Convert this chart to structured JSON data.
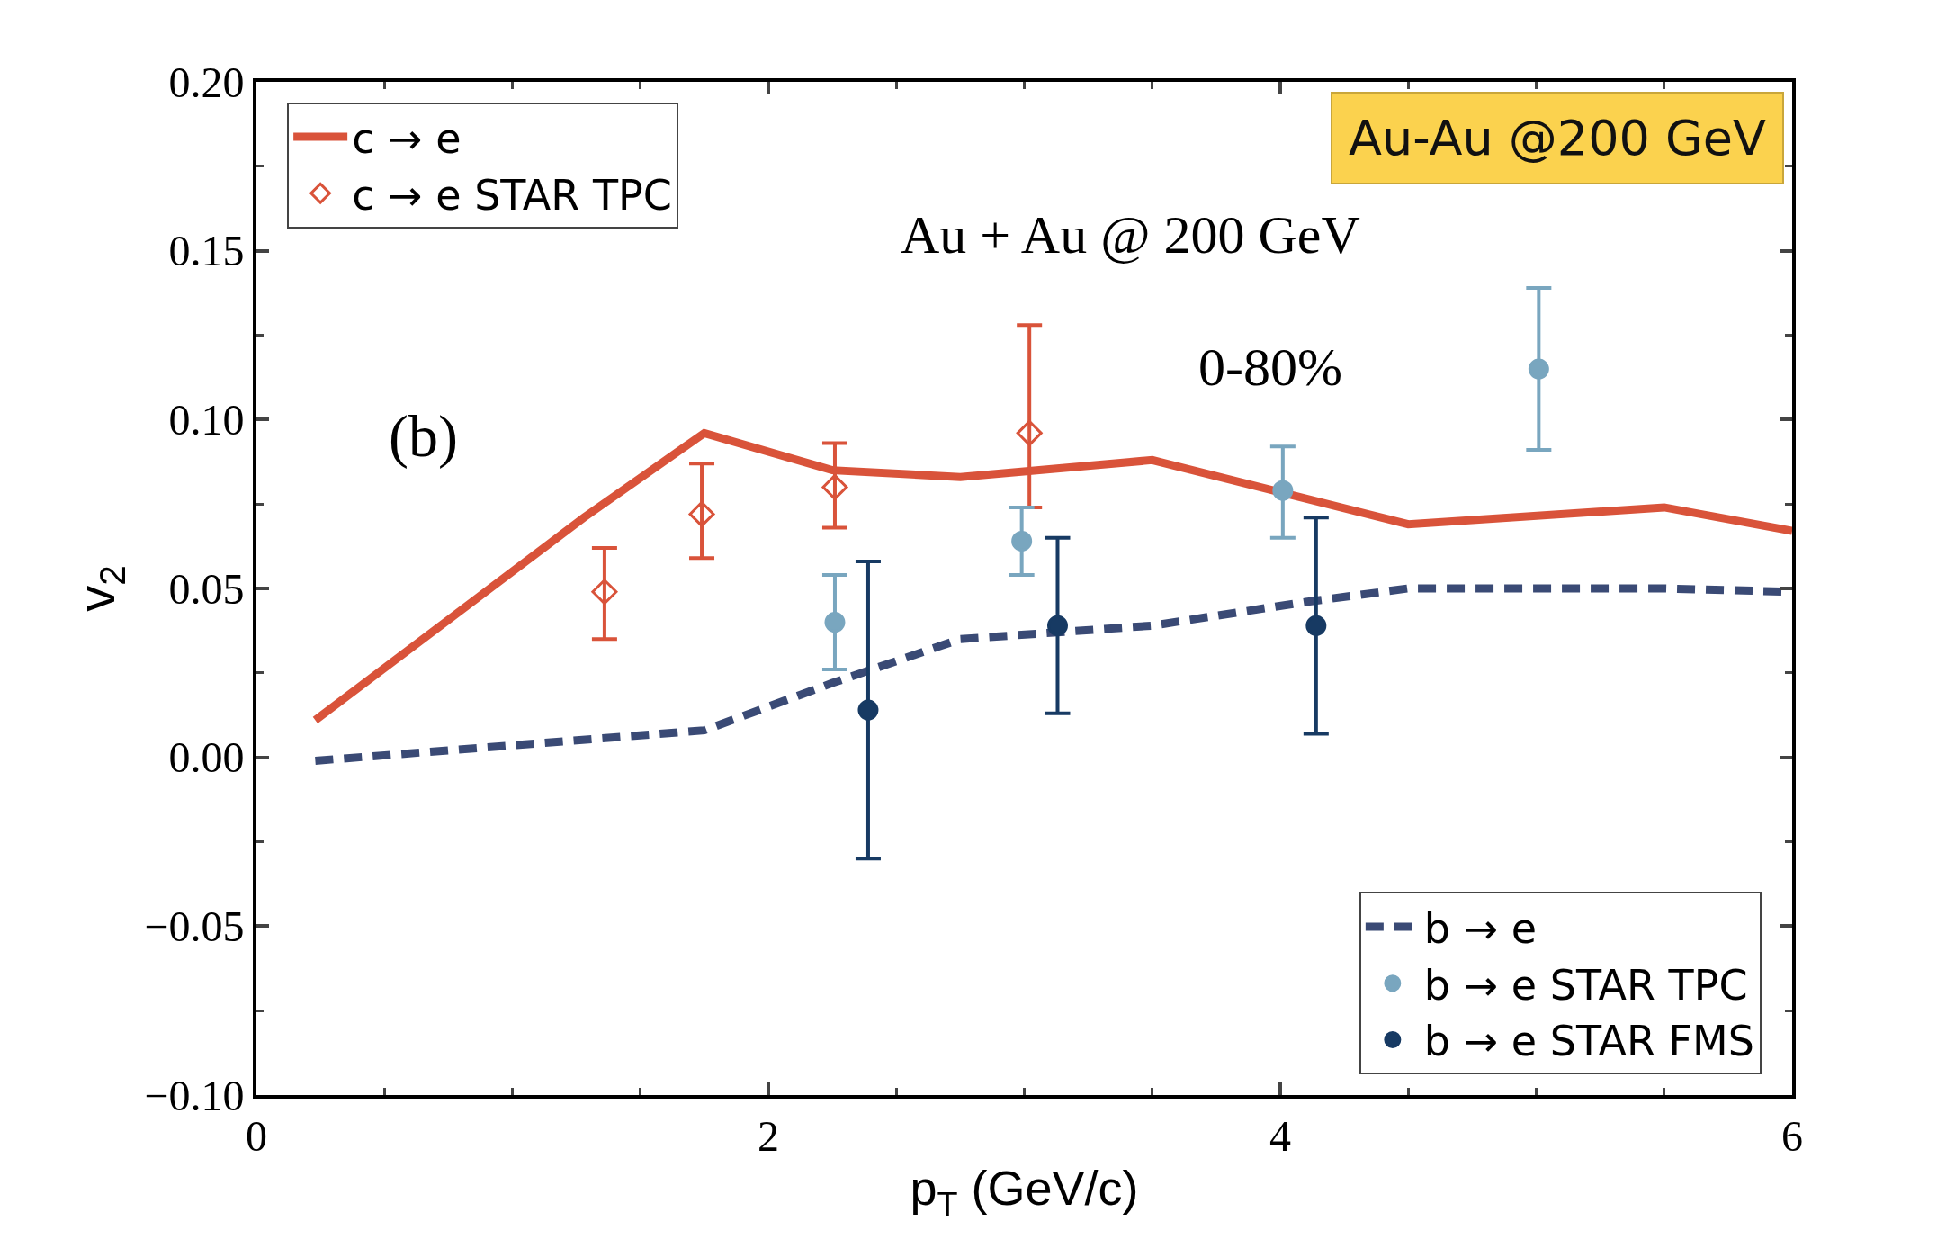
{
  "chart_data": {
    "type": "line",
    "xlabel": "p$_{T}$ (GeV/c)",
    "ylabel": "v$_{2}$",
    "xlim": [
      0,
      6
    ],
    "xticks": [
      0,
      2,
      4,
      6
    ],
    "ylim": [
      -0.1,
      0.2
    ],
    "yticks": [
      {
        "value": -0.1,
        "label": "−0.10"
      },
      {
        "value": -0.05,
        "label": "−0.05"
      },
      {
        "value": 0,
        "label": "0.00"
      },
      {
        "value": 0.05,
        "label": "0.05"
      },
      {
        "value": 0.1,
        "label": "0.10"
      },
      {
        "value": 0.15,
        "label": "0.15"
      },
      {
        "value": 0.2,
        "label": "0.20"
      }
    ],
    "legend": [
      "top left",
      "bottom right"
    ],
    "series": [
      {
        "name": "c → e",
        "color": "#d9533a",
        "line_style": "solid",
        "marker": "none",
        "x": [
          0.23,
          1.28,
          1.75,
          2.25,
          2.75,
          3.5,
          4.5,
          5.5,
          6.0
        ],
        "values": [
          0.011,
          0.071,
          0.096,
          0.085,
          0.083,
          0.088,
          0.069,
          0.074,
          0.067
        ]
      },
      {
        "name": "c → e STAR TPC",
        "type": "scatter",
        "color": "#d9533a",
        "marker": "diamond-open",
        "x": [
          1.36,
          1.74,
          2.26,
          3.02
        ],
        "values": [
          0.049,
          0.072,
          0.08,
          0.096
        ],
        "errors": [
          [
            0.035,
            0.062
          ],
          [
            0.059,
            0.087
          ],
          [
            0.068,
            0.093
          ],
          [
            0.074,
            0.128
          ]
        ]
      },
      {
        "name": "b → e",
        "color": "#3a4a75",
        "line_style": "dashed",
        "marker": "none",
        "x": [
          0.23,
          1.75,
          2.25,
          2.75,
          3.5,
          4.1,
          4.5,
          5.5,
          6.0
        ],
        "values": [
          -0.001,
          0.008,
          0.022,
          0.035,
          0.039,
          0.046,
          0.05,
          0.05,
          0.049
        ]
      },
      {
        "name": "b → e STAR TPC",
        "type": "scatter",
        "color": "#79a6bf",
        "marker": "circle",
        "x": [
          2.26,
          2.99,
          4.01,
          5.01
        ],
        "values": [
          0.04,
          0.064,
          0.079,
          0.115
        ],
        "errors": [
          [
            0.026,
            0.054
          ],
          [
            0.054,
            0.074
          ],
          [
            0.065,
            0.092
          ],
          [
            0.091,
            0.139
          ]
        ]
      },
      {
        "name": "b → e STAR FMS",
        "type": "scatter",
        "color": "#173a63",
        "marker": "circle",
        "x": [
          2.39,
          3.13,
          4.14
        ],
        "values": [
          0.014,
          0.039,
          0.039
        ],
        "errors": [
          [
            -0.03,
            0.058
          ],
          [
            0.013,
            0.065
          ],
          [
            0.007,
            0.071
          ]
        ]
      }
    ],
    "annotations": [
      "Au + Au @ 200 GeV",
      "0-80%",
      "(b)",
      "Au-Au @200 GeV"
    ]
  }
}
